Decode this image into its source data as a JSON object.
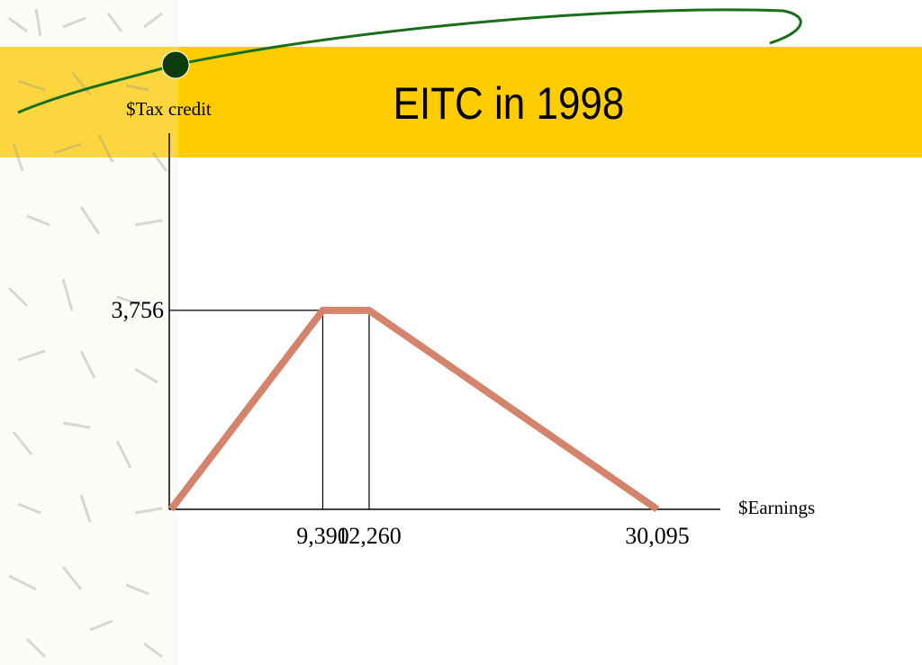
{
  "chart_data": {
    "type": "line",
    "title": "EITC in 1998",
    "y_label": "$Tax credit",
    "x_label": "$Earnings",
    "x": [
      0,
      9390,
      12260,
      30095
    ],
    "series": [
      {
        "values": [
          0,
          3756,
          3756,
          0
        ],
        "color": "#d4846c"
      }
    ],
    "xlim": [
      0,
      34000
    ],
    "ylim": [
      0,
      7100
    ],
    "xticks": [
      {
        "value": 9390,
        "label": "9,390"
      },
      {
        "value": 12260,
        "label": "12,260"
      },
      {
        "value": 30095,
        "label": "30,095"
      }
    ],
    "yticks": [
      {
        "value": 3756,
        "label": "3,756"
      }
    ]
  }
}
